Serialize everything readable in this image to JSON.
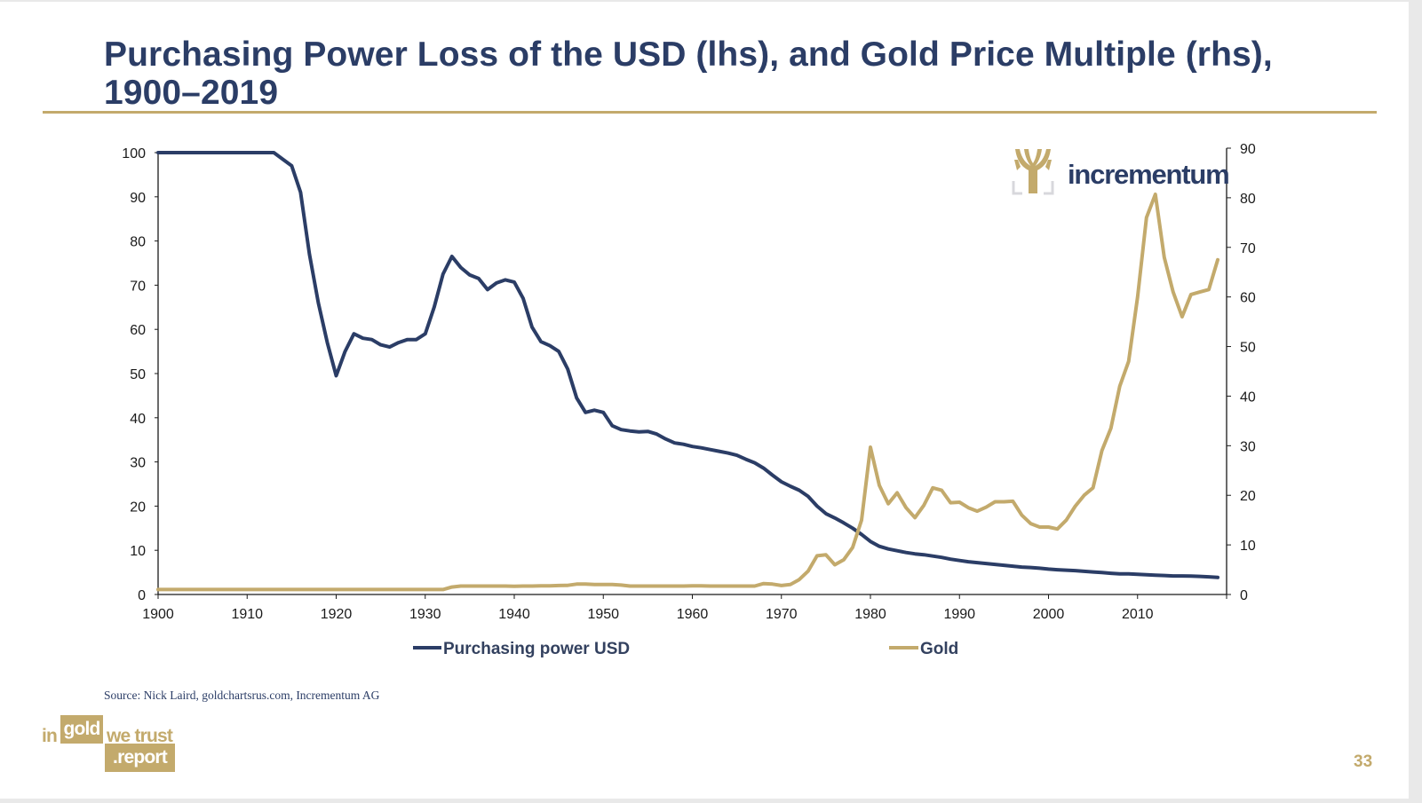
{
  "slide": {
    "title": "Purchasing Power Loss of the USD (lhs), and Gold Price Multiple (rhs), 1900–2019",
    "source": "Source: Nick Laird, goldchartsrus.com, Incrementum AG",
    "page_number": "33",
    "chart_logo": {
      "icon": "tree-icon",
      "text": "incrementum"
    },
    "brand": {
      "in": "in",
      "gold": "gold",
      "we_trust": "we trust",
      "report": ".report"
    },
    "colors": {
      "navy": "#2b3d66",
      "gold": "#c3aa6c"
    }
  },
  "chart_data": {
    "type": "line",
    "title": "Purchasing Power Loss of the USD (lhs), and Gold Price Multiple (rhs), 1900–2019",
    "xlabel": "",
    "ylabel_left": "",
    "ylabel_right": "",
    "grid": false,
    "legend_position": "bottom",
    "x_range": [
      1900,
      2020
    ],
    "x_ticks": [
      "1900",
      "1910",
      "1920",
      "1930",
      "1940",
      "1950",
      "1960",
      "1970",
      "1980",
      "1990",
      "2000",
      "2010"
    ],
    "y_left": {
      "range": [
        0,
        100
      ],
      "ticks": [
        "0",
        "10",
        "20",
        "30",
        "40",
        "50",
        "60",
        "70",
        "80",
        "90",
        "100"
      ]
    },
    "y_right": {
      "range": [
        0,
        90
      ],
      "ticks": [
        "0",
        "10",
        "20",
        "30",
        "40",
        "50",
        "60",
        "70",
        "80",
        "90"
      ]
    },
    "x": [
      1900,
      1901,
      1902,
      1903,
      1904,
      1905,
      1906,
      1907,
      1908,
      1909,
      1910,
      1911,
      1912,
      1913,
      1914,
      1915,
      1916,
      1917,
      1918,
      1919,
      1920,
      1921,
      1922,
      1923,
      1924,
      1925,
      1926,
      1927,
      1928,
      1929,
      1930,
      1931,
      1932,
      1933,
      1934,
      1935,
      1936,
      1937,
      1938,
      1939,
      1940,
      1941,
      1942,
      1943,
      1944,
      1945,
      1946,
      1947,
      1948,
      1949,
      1950,
      1951,
      1952,
      1953,
      1954,
      1955,
      1956,
      1957,
      1958,
      1959,
      1960,
      1961,
      1962,
      1963,
      1964,
      1965,
      1966,
      1967,
      1968,
      1969,
      1970,
      1971,
      1972,
      1973,
      1974,
      1975,
      1976,
      1977,
      1978,
      1979,
      1980,
      1981,
      1982,
      1983,
      1984,
      1985,
      1986,
      1987,
      1988,
      1989,
      1990,
      1991,
      1992,
      1993,
      1994,
      1995,
      1996,
      1997,
      1998,
      1999,
      2000,
      2001,
      2002,
      2003,
      2004,
      2005,
      2006,
      2007,
      2008,
      2009,
      2010,
      2011,
      2012,
      2013,
      2014,
      2015,
      2016,
      2017,
      2018,
      2019
    ],
    "series": [
      {
        "name": "Purchasing power USD",
        "axis": "left",
        "color": "#2b3d66",
        "values": [
          100,
          100,
          100,
          100,
          100,
          100,
          100,
          100,
          100,
          100,
          100,
          100,
          100,
          100,
          98.5,
          97,
          91,
          77,
          66,
          57,
          49.5,
          55,
          59,
          58,
          57.7,
          56.5,
          56,
          57,
          57.7,
          57.7,
          59,
          65,
          72.5,
          76.5,
          74,
          72.3,
          71.5,
          69,
          70.5,
          71.2,
          70.7,
          67,
          60.5,
          57.2,
          56.3,
          55,
          51,
          44.5,
          41.2,
          41.7,
          41.2,
          38.2,
          37.3,
          37,
          36.8,
          36.9,
          36.3,
          35.2,
          34.3,
          34,
          33.5,
          33.2,
          32.8,
          32.4,
          32,
          31.5,
          30.6,
          29.8,
          28.6,
          27,
          25.5,
          24.5,
          23.6,
          22.2,
          20,
          18.3,
          17.3,
          16.2,
          15,
          13.6,
          12,
          10.9,
          10.3,
          9.9,
          9.5,
          9.2,
          9,
          8.7,
          8.4,
          8,
          7.7,
          7.4,
          7.2,
          7,
          6.8,
          6.6,
          6.4,
          6.2,
          6.1,
          5.95,
          5.75,
          5.6,
          5.5,
          5.4,
          5.25,
          5.1,
          4.95,
          4.8,
          4.65,
          4.65,
          4.55,
          4.45,
          4.35,
          4.3,
          4.2,
          4.2,
          4.15,
          4.1,
          4,
          3.85
        ]
      },
      {
        "name": "Gold",
        "axis": "right",
        "color": "#c3aa6c",
        "values": [
          1,
          1,
          1,
          1,
          1,
          1,
          1,
          1,
          1,
          1,
          1,
          1,
          1,
          1,
          1,
          1,
          1,
          1,
          1,
          1,
          1,
          1,
          1,
          1,
          1,
          1,
          1,
          1,
          1,
          1,
          1,
          1,
          1,
          1.5,
          1.7,
          1.7,
          1.7,
          1.7,
          1.7,
          1.7,
          1.65,
          1.7,
          1.7,
          1.75,
          1.75,
          1.8,
          1.85,
          2.1,
          2.1,
          2,
          2,
          2,
          1.9,
          1.7,
          1.7,
          1.7,
          1.7,
          1.7,
          1.7,
          1.7,
          1.75,
          1.75,
          1.7,
          1.7,
          1.7,
          1.7,
          1.7,
          1.7,
          2.2,
          2.1,
          1.8,
          2,
          3,
          4.7,
          7.8,
          8,
          6,
          7,
          9.5,
          15,
          29.7,
          22,
          18.3,
          20.5,
          17.5,
          15.5,
          18,
          21.5,
          21,
          18.5,
          18.6,
          17.5,
          16.8,
          17.6,
          18.7,
          18.7,
          18.8,
          16,
          14.3,
          13.6,
          13.6,
          13.2,
          15,
          17.8,
          20,
          21.5,
          29,
          33.5,
          42,
          47,
          60,
          76,
          80.7,
          68,
          61,
          56,
          60.5,
          61,
          61.5,
          67.5
        ]
      }
    ]
  }
}
